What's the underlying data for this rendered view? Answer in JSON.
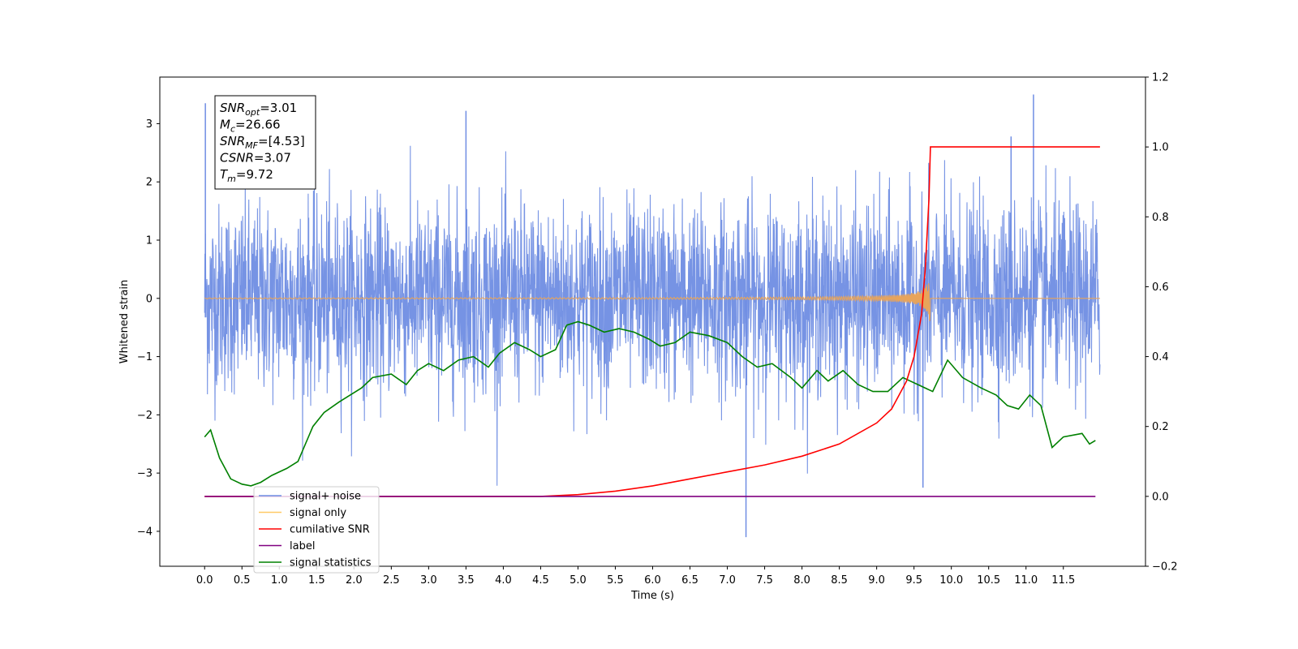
{
  "chart_data": {
    "type": "line",
    "xlabel": "Time (s)",
    "ylabel": "Whitened strain",
    "xlim": [
      -0.6,
      12.6
    ],
    "ylim": [
      -4.6,
      3.8
    ],
    "y2lim": [
      -0.2,
      1.2
    ],
    "x_ticks": [
      "0.0",
      "0.5",
      "1.0",
      "1.5",
      "2.0",
      "2.5",
      "3.0",
      "3.5",
      "4.0",
      "4.5",
      "5.0",
      "5.5",
      "6.0",
      "6.5",
      "7.0",
      "7.5",
      "8.0",
      "8.5",
      "9.0",
      "9.5",
      "10.0",
      "10.5",
      "11.0",
      "11.5"
    ],
    "y_ticks": [
      "3",
      "2",
      "1",
      "0",
      "−1",
      "−2",
      "−3",
      "−4"
    ],
    "y2_ticks": [
      "1.2",
      "1.0",
      "0.8",
      "0.6",
      "0.4",
      "0.2",
      "0.0",
      "−0.2"
    ],
    "info_box": [
      {
        "sym": "SNR",
        "sub": "opt",
        "val": "=3.01"
      },
      {
        "sym": "M",
        "sub": "c",
        "val": "=26.66"
      },
      {
        "sym": "SNR",
        "sub": "MF",
        "val": "=[4.53]"
      },
      {
        "sym": "CSNR",
        "sub": "",
        "val": "=3.07"
      },
      {
        "sym": "T",
        "sub": "m",
        "val": "=9.72"
      }
    ],
    "legend": {
      "position": "lower-left",
      "entries": [
        {
          "label": "signal+ noise",
          "color": "#6f8de3"
        },
        {
          "label": "signal only",
          "color": "#ffc966"
        },
        {
          "label": "cumilative SNR",
          "color": "#ff0000"
        },
        {
          "label": "label",
          "color": "#800080"
        },
        {
          "label": "signal statistics",
          "color": "#008000"
        }
      ]
    },
    "series": [
      {
        "name": "signal+ noise",
        "axis": "left",
        "color": "#6f8de3",
        "noise": {
          "t_start": 0.0,
          "t_end": 11.99,
          "mean": 0.0,
          "std_dev": 0.8,
          "min": -4.1,
          "max": 3.5
        },
        "spikes": [
          [
            0.01,
            3.35
          ],
          [
            3.5,
            3.22
          ],
          [
            7.25,
            -4.1
          ],
          [
            9.62,
            -3.25
          ],
          [
            11.1,
            3.5
          ],
          [
            10.8,
            2.78
          ]
        ]
      },
      {
        "name": "signal only",
        "axis": "left",
        "color": "#e8a45a",
        "chirp": {
          "t_start": 0.0,
          "t_end": 11.99,
          "merger_time": 9.72,
          "peak_amplitude": 0.57
        }
      },
      {
        "name": "cumilative SNR",
        "axis": "right",
        "color": "#ff0000",
        "x": [
          0.0,
          4.0,
          4.5,
          5.0,
          5.5,
          6.0,
          6.5,
          7.0,
          7.5,
          8.0,
          8.5,
          9.0,
          9.2,
          9.4,
          9.5,
          9.6,
          9.65,
          9.7,
          9.72,
          11.99
        ],
        "y": [
          0.0,
          0.0,
          0.0,
          0.005,
          0.015,
          0.03,
          0.05,
          0.07,
          0.09,
          0.115,
          0.15,
          0.21,
          0.25,
          0.33,
          0.4,
          0.52,
          0.65,
          0.85,
          1.0,
          1.0
        ]
      },
      {
        "name": "label",
        "axis": "right",
        "color": "#800080",
        "x": [
          0.0,
          11.93
        ],
        "y": [
          0.0,
          0.0
        ]
      },
      {
        "name": "signal statistics",
        "axis": "right",
        "color": "#008000",
        "x": [
          0.0,
          0.08,
          0.2,
          0.35,
          0.5,
          0.62,
          0.75,
          0.9,
          1.1,
          1.25,
          1.45,
          1.6,
          1.8,
          1.95,
          2.1,
          2.25,
          2.5,
          2.7,
          2.85,
          3.0,
          3.2,
          3.4,
          3.6,
          3.8,
          3.95,
          4.15,
          4.35,
          4.5,
          4.7,
          4.85,
          5.0,
          5.15,
          5.35,
          5.55,
          5.75,
          5.95,
          6.1,
          6.3,
          6.5,
          6.75,
          7.0,
          7.2,
          7.4,
          7.6,
          7.85,
          8.0,
          8.2,
          8.35,
          8.55,
          8.75,
          8.95,
          9.15,
          9.35,
          9.55,
          9.75,
          9.95,
          10.15,
          10.4,
          10.6,
          10.75,
          10.9,
          11.05,
          11.2,
          11.35,
          11.5,
          11.75,
          11.85,
          11.93
        ],
        "y": [
          0.17,
          0.19,
          0.11,
          0.05,
          0.035,
          0.03,
          0.04,
          0.06,
          0.08,
          0.1,
          0.2,
          0.24,
          0.27,
          0.29,
          0.31,
          0.34,
          0.35,
          0.32,
          0.36,
          0.38,
          0.36,
          0.39,
          0.4,
          0.37,
          0.41,
          0.44,
          0.42,
          0.4,
          0.42,
          0.49,
          0.5,
          0.49,
          0.47,
          0.48,
          0.47,
          0.45,
          0.43,
          0.44,
          0.47,
          0.46,
          0.44,
          0.4,
          0.37,
          0.38,
          0.34,
          0.31,
          0.36,
          0.33,
          0.36,
          0.32,
          0.3,
          0.3,
          0.34,
          0.32,
          0.3,
          0.39,
          0.34,
          0.31,
          0.29,
          0.26,
          0.25,
          0.29,
          0.26,
          0.14,
          0.17,
          0.18,
          0.15,
          0.16
        ]
      }
    ]
  }
}
